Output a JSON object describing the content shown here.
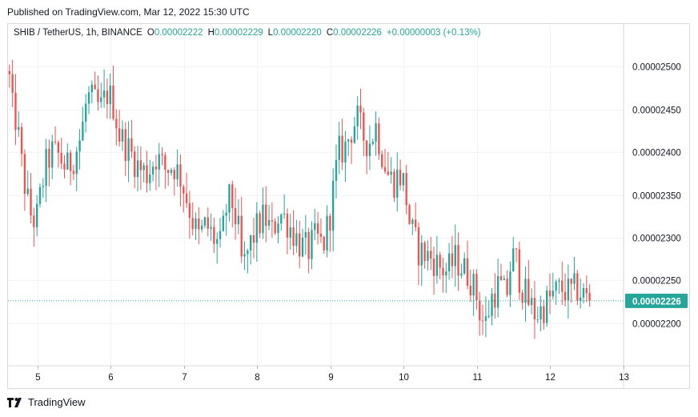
{
  "header": {
    "published_text": "Published on TradingView.com, Mar 12, 2022 15:30 UTC"
  },
  "legend": {
    "symbol": "SHIB / TetherUS, 1h, BINANCE",
    "open_label": "O",
    "open_value": "0.00002222",
    "high_label": "H",
    "high_value": "0.00002229",
    "low_label": "L",
    "low_value": "0.00002220",
    "close_label": "C",
    "close_value": "0.00002226",
    "change_text": "+0.00000003 (+0.13%)"
  },
  "footer": {
    "brand": "TradingView",
    "logo_icon": "tradingview-logo-icon"
  },
  "colors": {
    "up": "#26a69a",
    "down": "#ef5350",
    "grid": "#f0f3fa",
    "axis_text": "#131722",
    "price_badge": "#26a69a"
  },
  "chart_data": {
    "type": "candlestick",
    "title": "SHIB / TetherUS, 1h, BINANCE",
    "x_ticks": [
      "5",
      "6",
      "7",
      "8",
      "9",
      "10",
      "11",
      "12",
      "13"
    ],
    "y_ticks": [
      "0.00002200",
      "0.00002250",
      "0.00002300",
      "0.00002350",
      "0.00002400",
      "0.00002450",
      "0.00002500"
    ],
    "ylim": [
      2.15e-05,
      2.55e-05
    ],
    "xlim": [
      4.6,
      13.0
    ],
    "last_price": "0.00002226",
    "last_price_value": 2.226e-05,
    "grid": true,
    "close_path": [
      [
        4.62,
        2.485e-05
      ],
      [
        4.66,
        2.45e-05
      ],
      [
        4.72,
        2.435e-05
      ],
      [
        4.78,
        2.39e-05
      ],
      [
        4.84,
        2.355e-05
      ],
      [
        4.9,
        2.33e-05
      ],
      [
        4.94,
        2.32e-05
      ],
      [
        5.0,
        2.325e-05
      ],
      [
        5.06,
        2.36e-05
      ],
      [
        5.12,
        2.385e-05
      ],
      [
        5.2,
        2.4e-05
      ],
      [
        5.3,
        2.395e-05
      ],
      [
        5.4,
        2.38e-05
      ],
      [
        5.5,
        2.395e-05
      ],
      [
        5.6,
        2.42e-05
      ],
      [
        5.68,
        2.465e-05
      ],
      [
        5.76,
        2.46e-05
      ],
      [
        5.86,
        2.45e-05
      ],
      [
        5.96,
        2.47e-05
      ],
      [
        6.04,
        2.455e-05
      ],
      [
        6.12,
        2.42e-05
      ],
      [
        6.2,
        2.41e-05
      ],
      [
        6.3,
        2.395e-05
      ],
      [
        6.4,
        2.38e-05
      ],
      [
        6.5,
        2.375e-05
      ],
      [
        6.62,
        2.395e-05
      ],
      [
        6.74,
        2.38e-05
      ],
      [
        6.86,
        2.385e-05
      ],
      [
        6.96,
        2.37e-05
      ],
      [
        7.04,
        2.345e-05
      ],
      [
        7.12,
        2.32e-05
      ],
      [
        7.2,
        2.3e-05
      ],
      [
        7.3,
        2.315e-05
      ],
      [
        7.4,
        2.3e-05
      ],
      [
        7.5,
        2.29e-05
      ],
      [
        7.6,
        2.345e-05
      ],
      [
        7.66,
        2.34e-05
      ],
      [
        7.74,
        2.31e-05
      ],
      [
        7.8,
        2.26e-05
      ],
      [
        7.86,
        2.28e-05
      ],
      [
        7.94,
        2.3e-05
      ],
      [
        8.02,
        2.315e-05
      ],
      [
        8.1,
        2.325e-05
      ],
      [
        8.2,
        2.305e-05
      ],
      [
        8.3,
        2.33e-05
      ],
      [
        8.4,
        2.32e-05
      ],
      [
        8.5,
        2.305e-05
      ],
      [
        8.6,
        2.29e-05
      ],
      [
        8.7,
        2.285e-05
      ],
      [
        8.8,
        2.3e-05
      ],
      [
        8.9,
        2.29e-05
      ],
      [
        9.0,
        2.33e-05
      ],
      [
        9.06,
        2.37e-05
      ],
      [
        9.12,
        2.4e-05
      ],
      [
        9.2,
        2.405e-05
      ],
      [
        9.28,
        2.425e-05
      ],
      [
        9.36,
        2.44e-05
      ],
      [
        9.44,
        2.42e-05
      ],
      [
        9.52,
        2.41e-05
      ],
      [
        9.62,
        2.43e-05
      ],
      [
        9.7,
        2.4e-05
      ],
      [
        9.78,
        2.375e-05
      ],
      [
        9.86,
        2.365e-05
      ],
      [
        9.94,
        2.375e-05
      ],
      [
        10.02,
        2.36e-05
      ],
      [
        10.06,
        2.325e-05
      ],
      [
        10.12,
        2.305e-05
      ],
      [
        10.2,
        2.285e-05
      ],
      [
        10.3,
        2.28e-05
      ],
      [
        10.4,
        2.275e-05
      ],
      [
        10.5,
        2.265e-05
      ],
      [
        10.6,
        2.26e-05
      ],
      [
        10.7,
        2.275e-05
      ],
      [
        10.8,
        2.265e-05
      ],
      [
        10.9,
        2.255e-05
      ],
      [
        11.0,
        2.23e-05
      ],
      [
        11.06,
        2.205e-05
      ],
      [
        11.12,
        2.2e-05
      ],
      [
        11.2,
        2.23e-05
      ],
      [
        11.3,
        2.245e-05
      ],
      [
        11.4,
        2.23e-05
      ],
      [
        11.46,
        2.27e-05
      ],
      [
        11.52,
        2.28e-05
      ],
      [
        11.6,
        2.245e-05
      ],
      [
        11.7,
        2.225e-05
      ],
      [
        11.8,
        2.21e-05
      ],
      [
        11.88,
        2.215e-05
      ],
      [
        11.96,
        2.225e-05
      ],
      [
        12.06,
        2.235e-05
      ],
      [
        12.16,
        2.24e-05
      ],
      [
        12.26,
        2.235e-05
      ],
      [
        12.36,
        2.24e-05
      ],
      [
        12.46,
        2.232e-05
      ],
      [
        12.56,
        2.226e-05
      ]
    ]
  }
}
